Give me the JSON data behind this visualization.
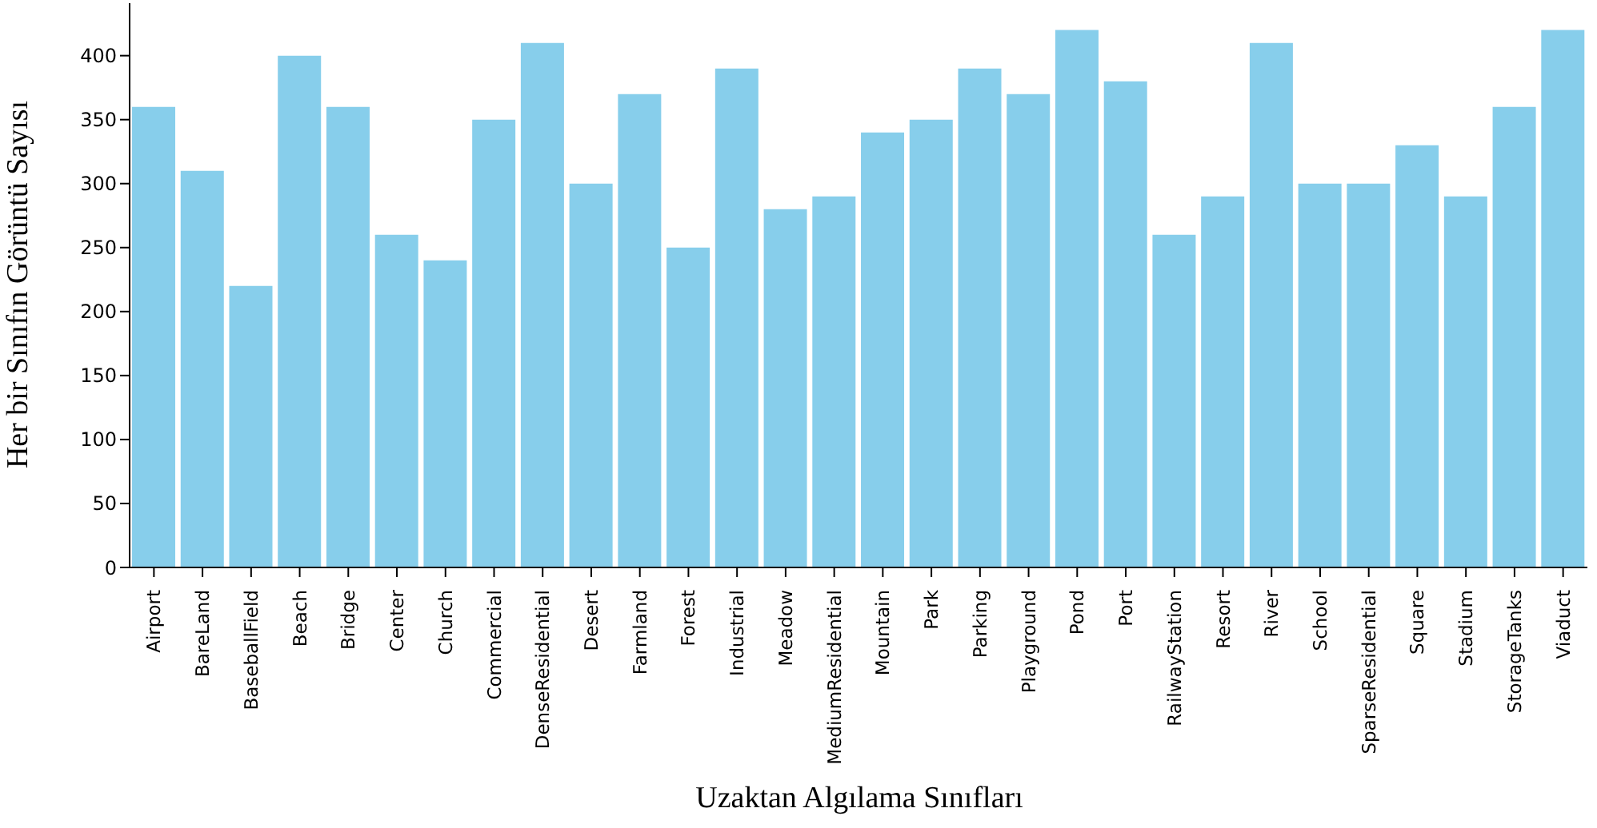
{
  "chart_data": {
    "type": "bar",
    "xlabel": "Uzaktan Algılama Sınıfları",
    "ylabel": "Her bir Sınıfın Görüntü Sayısı",
    "categories": [
      "Airport",
      "BareLand",
      "BaseballField",
      "Beach",
      "Bridge",
      "Center",
      "Church",
      "Commercial",
      "DenseResidential",
      "Desert",
      "Farmland",
      "Forest",
      "Industrial",
      "Meadow",
      "MediumResidential",
      "Mountain",
      "Park",
      "Parking",
      "Playground",
      "Pond",
      "Port",
      "RailwayStation",
      "Resort",
      "River",
      "School",
      "SparseResidential",
      "Square",
      "Stadium",
      "StorageTanks",
      "Viaduct"
    ],
    "values": [
      360,
      310,
      220,
      400,
      360,
      260,
      240,
      350,
      410,
      300,
      370,
      250,
      390,
      280,
      290,
      340,
      350,
      390,
      370,
      420,
      380,
      260,
      290,
      410,
      300,
      300,
      330,
      290,
      360,
      420
    ],
    "color": "#87ceeb",
    "ylim": [
      0,
      441
    ],
    "yticks": [
      0,
      50,
      100,
      150,
      200,
      250,
      300,
      350,
      400
    ],
    "grid": false,
    "legend": false
  }
}
